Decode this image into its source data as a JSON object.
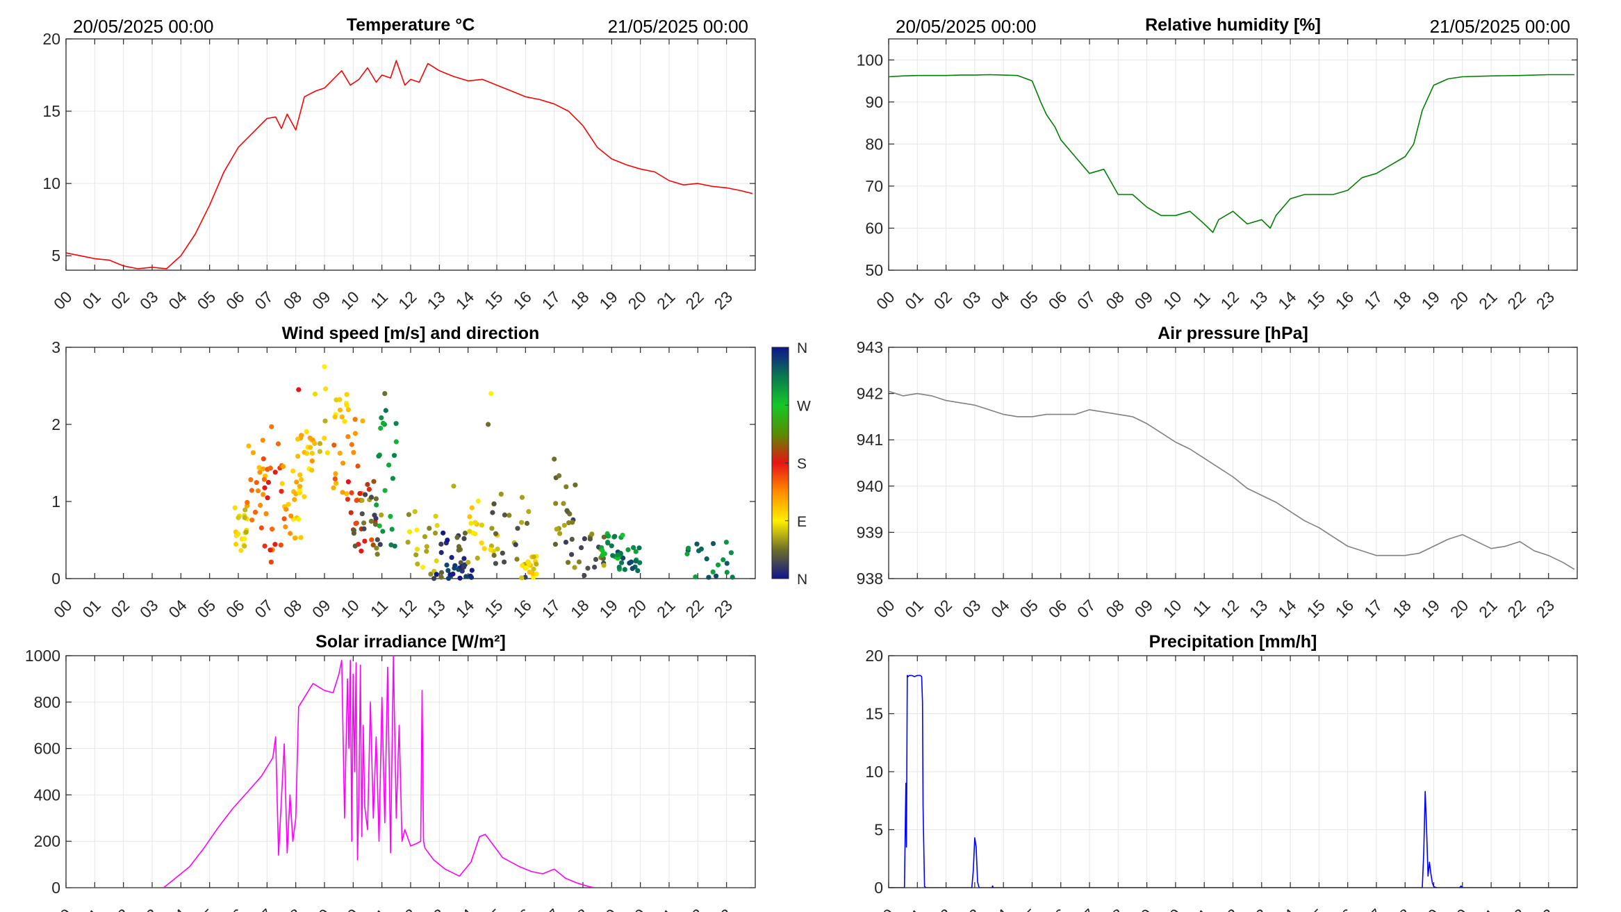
{
  "date_start": "20/05/2025 00:00",
  "date_end": "21/05/2025 00:00",
  "hour_labels": [
    "00",
    "01",
    "02",
    "03",
    "04",
    "05",
    "06",
    "07",
    "08",
    "09",
    "10",
    "11",
    "12",
    "13",
    "14",
    "15",
    "16",
    "17",
    "18",
    "19",
    "20",
    "21",
    "22",
    "23"
  ],
  "colorbar": {
    "labels": [
      "N",
      "W",
      "S",
      "E",
      "N"
    ]
  },
  "colors": {
    "temperature": "#ff0000",
    "humidity": "#008000",
    "pressure": "#808080",
    "solar": "#ff00ff",
    "precipitation": "#0000ff",
    "grid": "#e6e6e6",
    "axis": "#262626"
  },
  "chart_data": [
    {
      "id": "temperature",
      "type": "line",
      "title": "Temperature °C",
      "xlabel": "",
      "ylabel": "",
      "xlim": [
        0,
        24
      ],
      "ylim": [
        4,
        20
      ],
      "yticks": [
        5,
        10,
        15,
        20
      ],
      "grid": true,
      "series": [
        {
          "x": [
            0,
            0.5,
            1,
            1.5,
            2,
            2.5,
            3,
            3.5,
            4,
            4.5,
            5,
            5.5,
            6,
            6.5,
            7,
            7.3,
            7.5,
            7.7,
            8,
            8.3,
            8.7,
            9,
            9.3,
            9.6,
            9.9,
            10.2,
            10.5,
            10.8,
            11,
            11.3,
            11.5,
            11.8,
            12,
            12.3,
            12.6,
            13,
            13.5,
            14,
            14.5,
            15,
            15.5,
            16,
            16.5,
            17,
            17.5,
            18,
            18.5,
            19,
            19.5,
            20,
            20.5,
            21,
            21.5,
            22,
            22.5,
            23,
            23.5,
            23.9
          ],
          "y": [
            5.2,
            5,
            4.8,
            4.7,
            4.3,
            4.1,
            4.2,
            4.1,
            5,
            6.5,
            8.5,
            10.8,
            12.5,
            13.5,
            14.5,
            14.6,
            13.8,
            14.8,
            13.7,
            16,
            16.4,
            16.6,
            17.2,
            17.8,
            16.8,
            17.2,
            18,
            17,
            17.5,
            17.3,
            18.5,
            16.8,
            17.2,
            17,
            18.3,
            17.8,
            17.4,
            17.1,
            17.2,
            16.8,
            16.4,
            16,
            15.8,
            15.5,
            15,
            14,
            12.5,
            11.7,
            11.3,
            11,
            10.8,
            10.2,
            9.9,
            10,
            9.8,
            9.7,
            9.5,
            9.3
          ]
        }
      ]
    },
    {
      "id": "humidity",
      "type": "line",
      "title": "Relative humidity [%]",
      "xlabel": "",
      "ylabel": "",
      "xlim": [
        0,
        24
      ],
      "ylim": [
        50,
        105
      ],
      "yticks": [
        50,
        60,
        70,
        80,
        90,
        100
      ],
      "grid": true,
      "series": [
        {
          "x": [
            0,
            0.5,
            1,
            1.5,
            2,
            2.5,
            3,
            3.5,
            4,
            4.5,
            5,
            5.3,
            5.5,
            5.8,
            6,
            6.5,
            7,
            7.5,
            8,
            8.5,
            9,
            9.5,
            10,
            10.5,
            11,
            11.3,
            11.5,
            12,
            12.5,
            13,
            13.3,
            13.5,
            14,
            14.5,
            15,
            15.5,
            16,
            16.5,
            17,
            17.5,
            18,
            18.3,
            18.6,
            19,
            19.5,
            20,
            21,
            22,
            23,
            23.9
          ],
          "y": [
            96,
            96.2,
            96.3,
            96.3,
            96.3,
            96.4,
            96.4,
            96.5,
            96.4,
            96.3,
            95,
            90,
            87,
            84,
            81,
            77,
            73,
            74,
            68,
            68,
            65,
            63,
            63,
            64,
            61,
            59,
            62,
            64,
            61,
            62,
            60,
            63,
            67,
            68,
            68,
            68,
            69,
            72,
            73,
            75,
            77,
            80,
            88,
            94,
            95.5,
            96,
            96.2,
            96.3,
            96.5,
            96.5
          ]
        }
      ]
    },
    {
      "id": "wind",
      "type": "scatter",
      "title": "Wind speed [m/s] and direction",
      "xlabel": "",
      "ylabel": "",
      "xlim": [
        0,
        24
      ],
      "ylim": [
        0,
        3
      ],
      "yticks": [
        0,
        1,
        2,
        3
      ],
      "grid": false,
      "color_scale": "direction (N-E-S-W-N)",
      "clusters": [
        {
          "x": [
            5.8,
            6.3
          ],
          "y": [
            0.3,
            1.0
          ],
          "dir": "E"
        },
        {
          "x": [
            6.3,
            7.0
          ],
          "y": [
            0.6,
            1.8
          ],
          "dir": "SE"
        },
        {
          "x": [
            6.8,
            7.8
          ],
          "y": [
            0.2,
            2.0
          ],
          "dir": "SSE"
        },
        {
          "x": [
            7.3,
            8.2
          ],
          "y": [
            0.5,
            1.5
          ],
          "dir": "ESE"
        },
        {
          "x": [
            8.0,
            8.6
          ],
          "y": [
            1.0,
            2.0
          ],
          "dir": "ESE"
        },
        {
          "x": [
            8.5,
            9.8
          ],
          "y": [
            1.6,
            2.6
          ],
          "dir": "E"
        },
        {
          "x": [
            9.3,
            10.4
          ],
          "y": [
            1.0,
            2.3
          ],
          "dir": "SE"
        },
        {
          "x": [
            9.8,
            10.8
          ],
          "y": [
            0.2,
            1.3
          ],
          "dir": "S"
        },
        {
          "x": [
            10.0,
            11.0
          ],
          "y": [
            0.3,
            1.2
          ],
          "dir": "NE"
        },
        {
          "x": [
            10.8,
            11.5
          ],
          "y": [
            0.4,
            2.2
          ],
          "dir": "WNW"
        },
        {
          "x": [
            11.8,
            13.0
          ],
          "y": [
            0,
            0.9
          ],
          "dir": "ENE"
        },
        {
          "x": [
            12.8,
            14.0
          ],
          "y": [
            0,
            0.7
          ],
          "dir": "NNE"
        },
        {
          "x": [
            13.2,
            14.2
          ],
          "y": [
            0,
            0.2
          ],
          "dir": "N"
        },
        {
          "x": [
            14.0,
            15.2
          ],
          "y": [
            0.2,
            1.1
          ],
          "dir": "E"
        },
        {
          "x": [
            14.8,
            16.2
          ],
          "y": [
            0,
            1.1
          ],
          "dir": "NE"
        },
        {
          "x": [
            15.8,
            16.4
          ],
          "y": [
            0,
            0.3
          ],
          "dir": "E"
        },
        {
          "x": [
            17.0,
            17.8
          ],
          "y": [
            0.2,
            1.4
          ],
          "dir": "NE"
        },
        {
          "x": [
            17.6,
            18.8
          ],
          "y": [
            0,
            0.6
          ],
          "dir": "NE"
        },
        {
          "x": [
            18.6,
            19.5
          ],
          "y": [
            0.1,
            0.6
          ],
          "dir": "WNW"
        },
        {
          "x": [
            19.2,
            20.0
          ],
          "y": [
            0.1,
            0.5
          ],
          "dir": "NW"
        },
        {
          "x": [
            21.6,
            23.3
          ],
          "y": [
            0,
            0.5
          ],
          "dir": "NW"
        }
      ],
      "outliers": [
        {
          "x": 8.1,
          "y": 2.45,
          "dir": "S"
        },
        {
          "x": 11.1,
          "y": 2.4,
          "dir": "NE"
        },
        {
          "x": 14.8,
          "y": 2.4,
          "dir": "E"
        },
        {
          "x": 14.7,
          "y": 2.0,
          "dir": "NE"
        },
        {
          "x": 17.0,
          "y": 1.55,
          "dir": "NE"
        },
        {
          "x": 13.5,
          "y": 1.2,
          "dir": "ENE"
        },
        {
          "x": 9.0,
          "y": 2.75,
          "dir": "E"
        }
      ]
    },
    {
      "id": "pressure",
      "type": "line",
      "title": "Air pressure [hPa]",
      "xlabel": "",
      "ylabel": "",
      "xlim": [
        0,
        24
      ],
      "ylim": [
        938,
        943
      ],
      "yticks": [
        938,
        939,
        940,
        941,
        942,
        943
      ],
      "grid": true,
      "series": [
        {
          "x": [
            0,
            0.5,
            1,
            1.5,
            2,
            2.5,
            3,
            3.5,
            4,
            4.5,
            5,
            5.5,
            6,
            6.5,
            7,
            7.5,
            8,
            8.5,
            9,
            9.5,
            10,
            10.5,
            11,
            11.5,
            12,
            12.5,
            13,
            13.5,
            14,
            14.5,
            15,
            15.5,
            16,
            16.5,
            17,
            17.5,
            18,
            18.5,
            19,
            19.5,
            20,
            20.5,
            21,
            21.5,
            22,
            22.5,
            23,
            23.5,
            23.9
          ],
          "y": [
            942.05,
            941.95,
            942.0,
            941.95,
            941.85,
            941.8,
            941.75,
            941.65,
            941.55,
            941.5,
            941.5,
            941.55,
            941.55,
            941.55,
            941.65,
            941.6,
            941.55,
            941.5,
            941.35,
            941.15,
            940.95,
            940.8,
            940.6,
            940.4,
            940.2,
            939.95,
            939.8,
            939.65,
            939.45,
            939.25,
            939.1,
            938.9,
            938.7,
            938.6,
            938.5,
            938.5,
            938.5,
            938.55,
            938.7,
            938.85,
            938.95,
            938.8,
            938.65,
            938.7,
            938.8,
            938.6,
            938.5,
            938.35,
            938.2
          ]
        }
      ]
    },
    {
      "id": "solar",
      "type": "line",
      "title": "Solar irradiance [W/m²]",
      "xlabel": "",
      "ylabel": "",
      "xlim": [
        0,
        24
      ],
      "ylim": [
        0,
        1000
      ],
      "yticks": [
        0,
        200,
        400,
        600,
        800,
        1000
      ],
      "grid": true,
      "series": [
        {
          "x": [
            0,
            3.4,
            3.8,
            4.3,
            4.8,
            5.3,
            5.8,
            6.3,
            6.8,
            7.2,
            7.3,
            7.4,
            7.5,
            7.6,
            7.7,
            7.8,
            7.9,
            8.0,
            8.1,
            8.3,
            8.6,
            9.0,
            9.3,
            9.5,
            9.6,
            9.7,
            9.8,
            9.85,
            9.9,
            9.95,
            10.0,
            10.05,
            10.1,
            10.15,
            10.2,
            10.25,
            10.3,
            10.35,
            10.4,
            10.5,
            10.6,
            10.7,
            10.8,
            10.9,
            11.0,
            11.1,
            11.2,
            11.3,
            11.4,
            11.5,
            11.6,
            11.7,
            11.8,
            12.0,
            12.2,
            12.35,
            12.4,
            12.45,
            12.5,
            12.8,
            13.2,
            13.7,
            14.1,
            14.4,
            14.6,
            14.9,
            15.2,
            15.5,
            15.8,
            16.2,
            16.6,
            17.0,
            17.4,
            17.8,
            18.2,
            18.4,
            19,
            24
          ],
          "y": [
            0,
            0,
            40,
            90,
            170,
            260,
            340,
            410,
            480,
            560,
            650,
            140,
            380,
            620,
            150,
            400,
            200,
            300,
            780,
            820,
            880,
            850,
            840,
            920,
            980,
            300,
            900,
            600,
            980,
            200,
            920,
            500,
            970,
            120,
            400,
            960,
            220,
            700,
            350,
            250,
            800,
            300,
            650,
            200,
            820,
            280,
            950,
            150,
            1000,
            300,
            700,
            200,
            250,
            180,
            190,
            200,
            850,
            200,
            170,
            120,
            80,
            50,
            110,
            220,
            230,
            180,
            130,
            110,
            90,
            70,
            60,
            80,
            40,
            20,
            5,
            0,
            0,
            0
          ]
        }
      ]
    },
    {
      "id": "precipitation",
      "type": "line",
      "title": "Precipitation [mm/h]",
      "xlabel": "",
      "ylabel": "",
      "xlim": [
        0,
        24
      ],
      "ylim": [
        0,
        20
      ],
      "yticks": [
        0,
        5,
        10,
        15,
        20
      ],
      "grid": true,
      "series": [
        {
          "x": [
            0,
            0.55,
            0.6,
            0.62,
            0.65,
            0.68,
            0.72,
            0.8,
            0.9,
            1.0,
            1.1,
            1.15,
            1.18,
            1.2,
            1.25,
            1.3,
            2.9,
            2.95,
            3.0,
            3.05,
            3.1,
            3.15,
            3.6,
            3.62,
            3.65,
            18.6,
            18.65,
            18.7,
            18.75,
            18.8,
            18.85,
            18.9,
            18.95,
            19.0,
            19.05,
            19.1,
            19.9,
            19.95,
            20.0,
            24
          ],
          "y": [
            0,
            0,
            9,
            3.5,
            18.3,
            18.2,
            18.3,
            18.3,
            18.2,
            18.3,
            18.3,
            18.2,
            16,
            7,
            0.1,
            0,
            0,
            1.5,
            4.3,
            3.5,
            0.5,
            0,
            0,
            0.15,
            0,
            0,
            3,
            8.3,
            5,
            1,
            2.2,
            1.2,
            0.4,
            0.1,
            0.05,
            0,
            0,
            0.15,
            0,
            0
          ]
        }
      ]
    }
  ]
}
